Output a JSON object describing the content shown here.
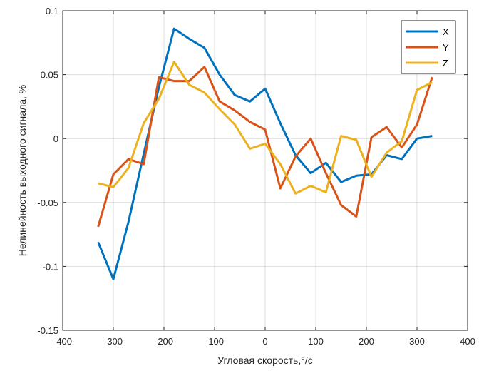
{
  "chart_data": {
    "type": "line",
    "title": "",
    "xlabel": "Угловая скорость,°/с",
    "ylabel": "Нелинейность выходного сигнала, %",
    "xlim": [
      -400,
      400
    ],
    "ylim": [
      -0.15,
      0.1
    ],
    "x_ticks": [
      -400,
      -300,
      -200,
      -100,
      0,
      100,
      200,
      300,
      400
    ],
    "y_ticks": [
      -0.15,
      -0.1,
      -0.05,
      0,
      0.05,
      0.1
    ],
    "x_tick_labels": [
      "-400",
      "-300",
      "-200",
      "-100",
      "0",
      "100",
      "200",
      "300",
      "400"
    ],
    "y_tick_labels": [
      "-0.15",
      "-0.1",
      "-0.05",
      "0",
      "0.05",
      "0.1"
    ],
    "grid": true,
    "legend_position": "top-right",
    "x": [
      -330,
      -300,
      -270,
      -240,
      -210,
      -180,
      -150,
      -120,
      -90,
      -60,
      -30,
      0,
      30,
      60,
      90,
      120,
      150,
      180,
      210,
      240,
      270,
      300,
      330
    ],
    "series": [
      {
        "name": "X",
        "color": "#0072BD",
        "values": [
          -0.081,
          -0.11,
          -0.065,
          -0.012,
          0.04,
          0.086,
          0.078,
          0.071,
          0.05,
          0.034,
          0.029,
          0.039,
          0.012,
          -0.013,
          -0.027,
          -0.019,
          -0.034,
          -0.029,
          -0.028,
          -0.013,
          -0.016,
          0.0,
          0.002
        ]
      },
      {
        "name": "Y",
        "color": "#D95319",
        "values": [
          -0.069,
          -0.028,
          -0.016,
          -0.02,
          0.048,
          0.045,
          0.045,
          0.056,
          0.029,
          0.022,
          0.013,
          0.007,
          -0.039,
          -0.014,
          0.0,
          -0.027,
          -0.052,
          -0.061,
          0.001,
          0.009,
          -0.007,
          0.011,
          0.048
        ]
      },
      {
        "name": "Z",
        "color": "#EDB120",
        "values": [
          -0.035,
          -0.038,
          -0.023,
          0.012,
          0.031,
          0.06,
          0.042,
          0.036,
          0.023,
          0.011,
          -0.008,
          -0.004,
          -0.02,
          -0.043,
          -0.037,
          -0.042,
          0.002,
          -0.001,
          -0.03,
          -0.011,
          -0.002,
          0.038,
          0.044
        ]
      }
    ]
  }
}
